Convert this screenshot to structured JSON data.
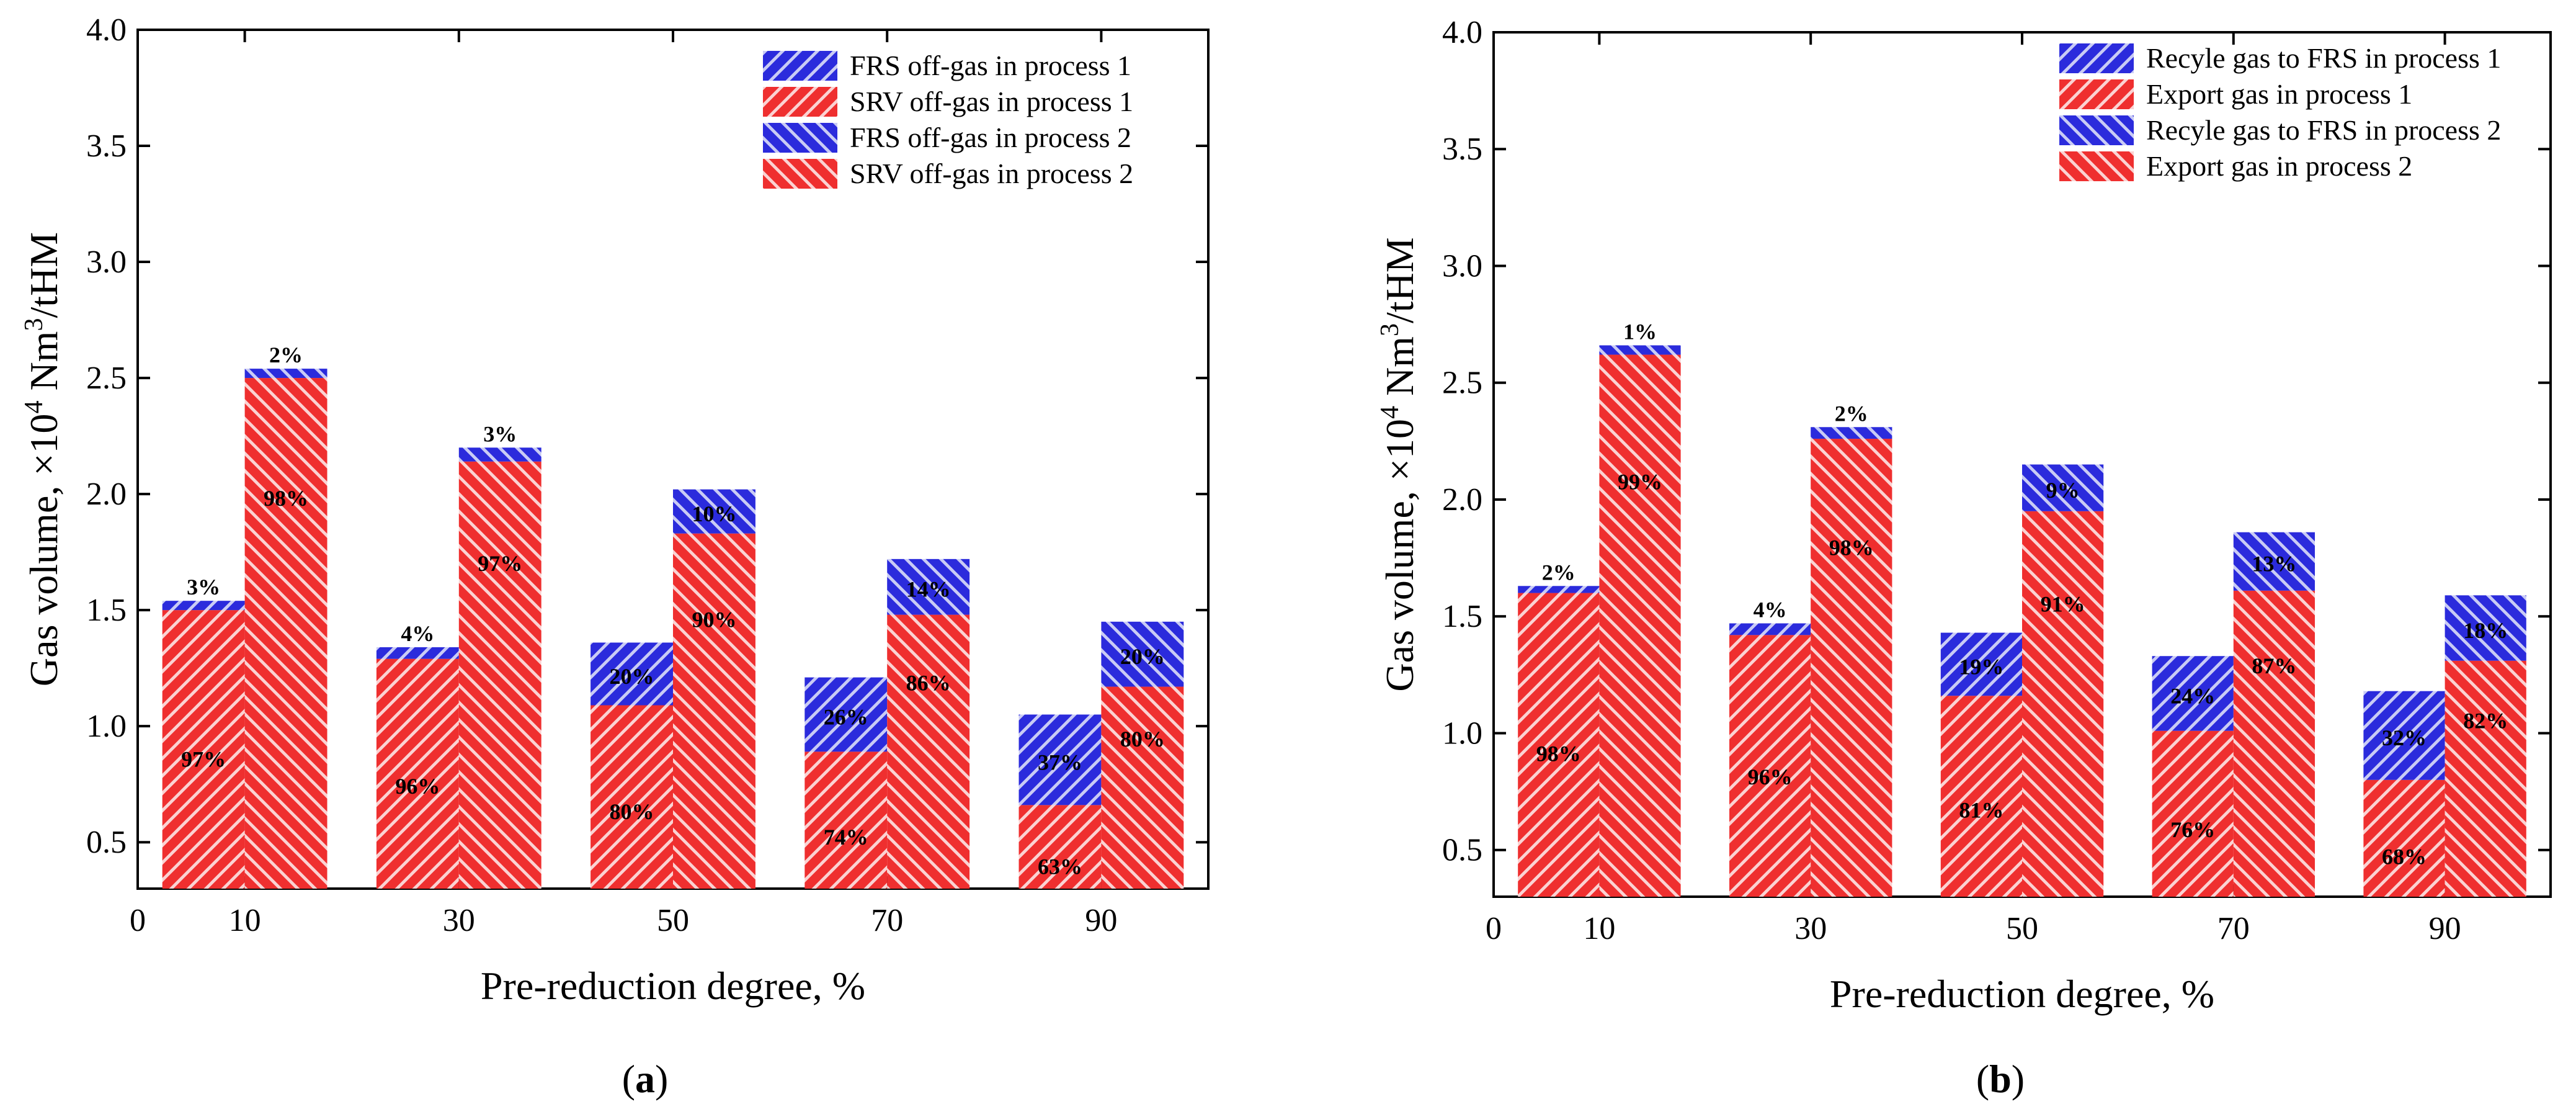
{
  "figure": {
    "panel_labels": [
      "(a)",
      "(b)"
    ]
  },
  "colors": {
    "blue": "#2b2bdc",
    "red": "#ef2f2f",
    "frame": "#000000"
  },
  "chart_data": [
    {
      "type": "bar",
      "subtype": "stacked-grouped",
      "panel_label": "(a)",
      "xlabel": "Pre-reduction degree, %",
      "ylabel": "Gas volume, ×10⁴ Nm³/tHM",
      "ylabel_parts": [
        "Gas volume, ×10",
        "4",
        " Nm",
        "3",
        "/tHM"
      ],
      "xlim": [
        0,
        100
      ],
      "ylim": [
        0.3,
        4.0
      ],
      "x_ticks": [
        0,
        10,
        30,
        50,
        70,
        90
      ],
      "y_ticks": [
        0.5,
        1.0,
        1.5,
        2.0,
        2.5,
        3.0,
        3.5,
        4.0
      ],
      "y_tick_labels": [
        "0.5",
        "1.0",
        "1.5",
        "2.0",
        "2.5",
        "3.0",
        "3.5",
        "4.0"
      ],
      "categories": [
        10,
        30,
        50,
        70,
        90
      ],
      "legend": [
        "FRS off-gas in process 1",
        "SRV off-gas in process 1",
        "FRS off-gas in process 2",
        "SRV off-gas in process 2"
      ],
      "processes": [
        {
          "name": "process 1",
          "series": [
            {
              "name": "SRV off-gas in process 1",
              "color": "red",
              "values": [
                1.5,
                1.29,
                1.09,
                0.89,
                0.66
              ],
              "labels": [
                "97%",
                "96%",
                "80%",
                "74%",
                "63%"
              ]
            },
            {
              "name": "FRS off-gas in process 1",
              "color": "blue",
              "values": [
                0.04,
                0.05,
                0.27,
                0.32,
                0.39
              ],
              "labels": [
                "3%",
                "4%",
                "20%",
                "26%",
                "37%"
              ]
            }
          ]
        },
        {
          "name": "process 2",
          "series": [
            {
              "name": "SRV off-gas in process 2",
              "color": "red",
              "values": [
                2.5,
                2.14,
                1.83,
                1.48,
                1.17
              ],
              "labels": [
                "98%",
                "97%",
                "90%",
                "86%",
                "80%"
              ]
            },
            {
              "name": "FRS off-gas in process 2",
              "color": "blue",
              "values": [
                0.04,
                0.06,
                0.19,
                0.24,
                0.28
              ],
              "labels": [
                "2%",
                "3%",
                "10%",
                "14%",
                "20%"
              ]
            }
          ]
        }
      ]
    },
    {
      "type": "bar",
      "subtype": "stacked-grouped",
      "panel_label": "(b)",
      "xlabel": "Pre-reduction degree, %",
      "ylabel": "Gas volume, ×10⁴ Nm³/tHM",
      "ylabel_parts": [
        "Gas volume, ×10",
        "4",
        " Nm",
        "3",
        "/tHM"
      ],
      "xlim": [
        0,
        100
      ],
      "ylim": [
        0.3,
        4.0
      ],
      "x_ticks": [
        0,
        10,
        30,
        50,
        70,
        90
      ],
      "y_ticks": [
        0.5,
        1.0,
        1.5,
        2.0,
        2.5,
        3.0,
        3.5,
        4.0
      ],
      "y_tick_labels": [
        "0.5",
        "1.0",
        "1.5",
        "2.0",
        "2.5",
        "3.0",
        "3.5",
        "4.0"
      ],
      "categories": [
        10,
        30,
        50,
        70,
        90
      ],
      "legend": [
        "Recyle gas to FRS in process 1",
        "Export gas in process 1",
        "Recyle gas to FRS in process 2",
        "Export gas in process 2"
      ],
      "processes": [
        {
          "name": "process 1",
          "series": [
            {
              "name": "Export gas in process 1",
              "color": "red",
              "values": [
                1.6,
                1.42,
                1.16,
                1.01,
                0.8
              ],
              "labels": [
                "98%",
                "96%",
                "81%",
                "76%",
                "68%"
              ]
            },
            {
              "name": "Recyle gas to FRS in process 1",
              "color": "blue",
              "values": [
                0.03,
                0.05,
                0.27,
                0.32,
                0.38
              ],
              "labels": [
                "2%",
                "4%",
                "19%",
                "24%",
                "32%"
              ]
            }
          ]
        },
        {
          "name": "process 2",
          "series": [
            {
              "name": "Export gas in process 2",
              "color": "red",
              "values": [
                2.62,
                2.26,
                1.95,
                1.61,
                1.31
              ],
              "labels": [
                "99%",
                "98%",
                "91%",
                "87%",
                "82%"
              ]
            },
            {
              "name": "Recyle gas to FRS in process 2",
              "color": "blue",
              "values": [
                0.04,
                0.05,
                0.2,
                0.25,
                0.28
              ],
              "labels": [
                "1%",
                "2%",
                "9%",
                "13%",
                "18%"
              ]
            }
          ]
        }
      ]
    }
  ]
}
